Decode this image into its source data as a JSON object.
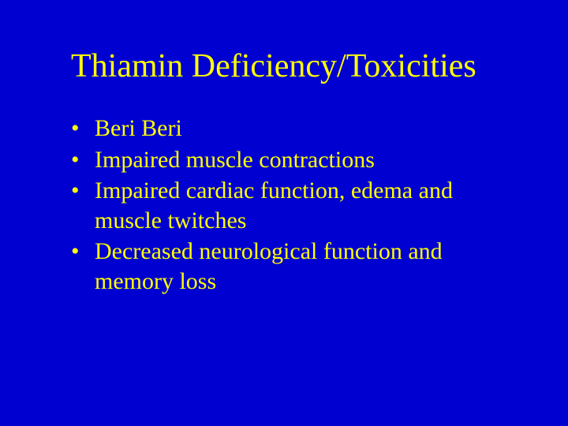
{
  "slide": {
    "background_color": "#0000d0",
    "title": {
      "text": "Thiamin Deficiency/Toxicities",
      "color": "#ffff00",
      "fontsize": 42,
      "font_family": "Times New Roman"
    },
    "bullets": {
      "color": "#ffff00",
      "fontsize": 30,
      "items": [
        "Beri Beri",
        "Impaired muscle contractions",
        "Impaired cardiac function, edema and muscle twitches",
        "Decreased neurological function and memory loss"
      ]
    }
  }
}
